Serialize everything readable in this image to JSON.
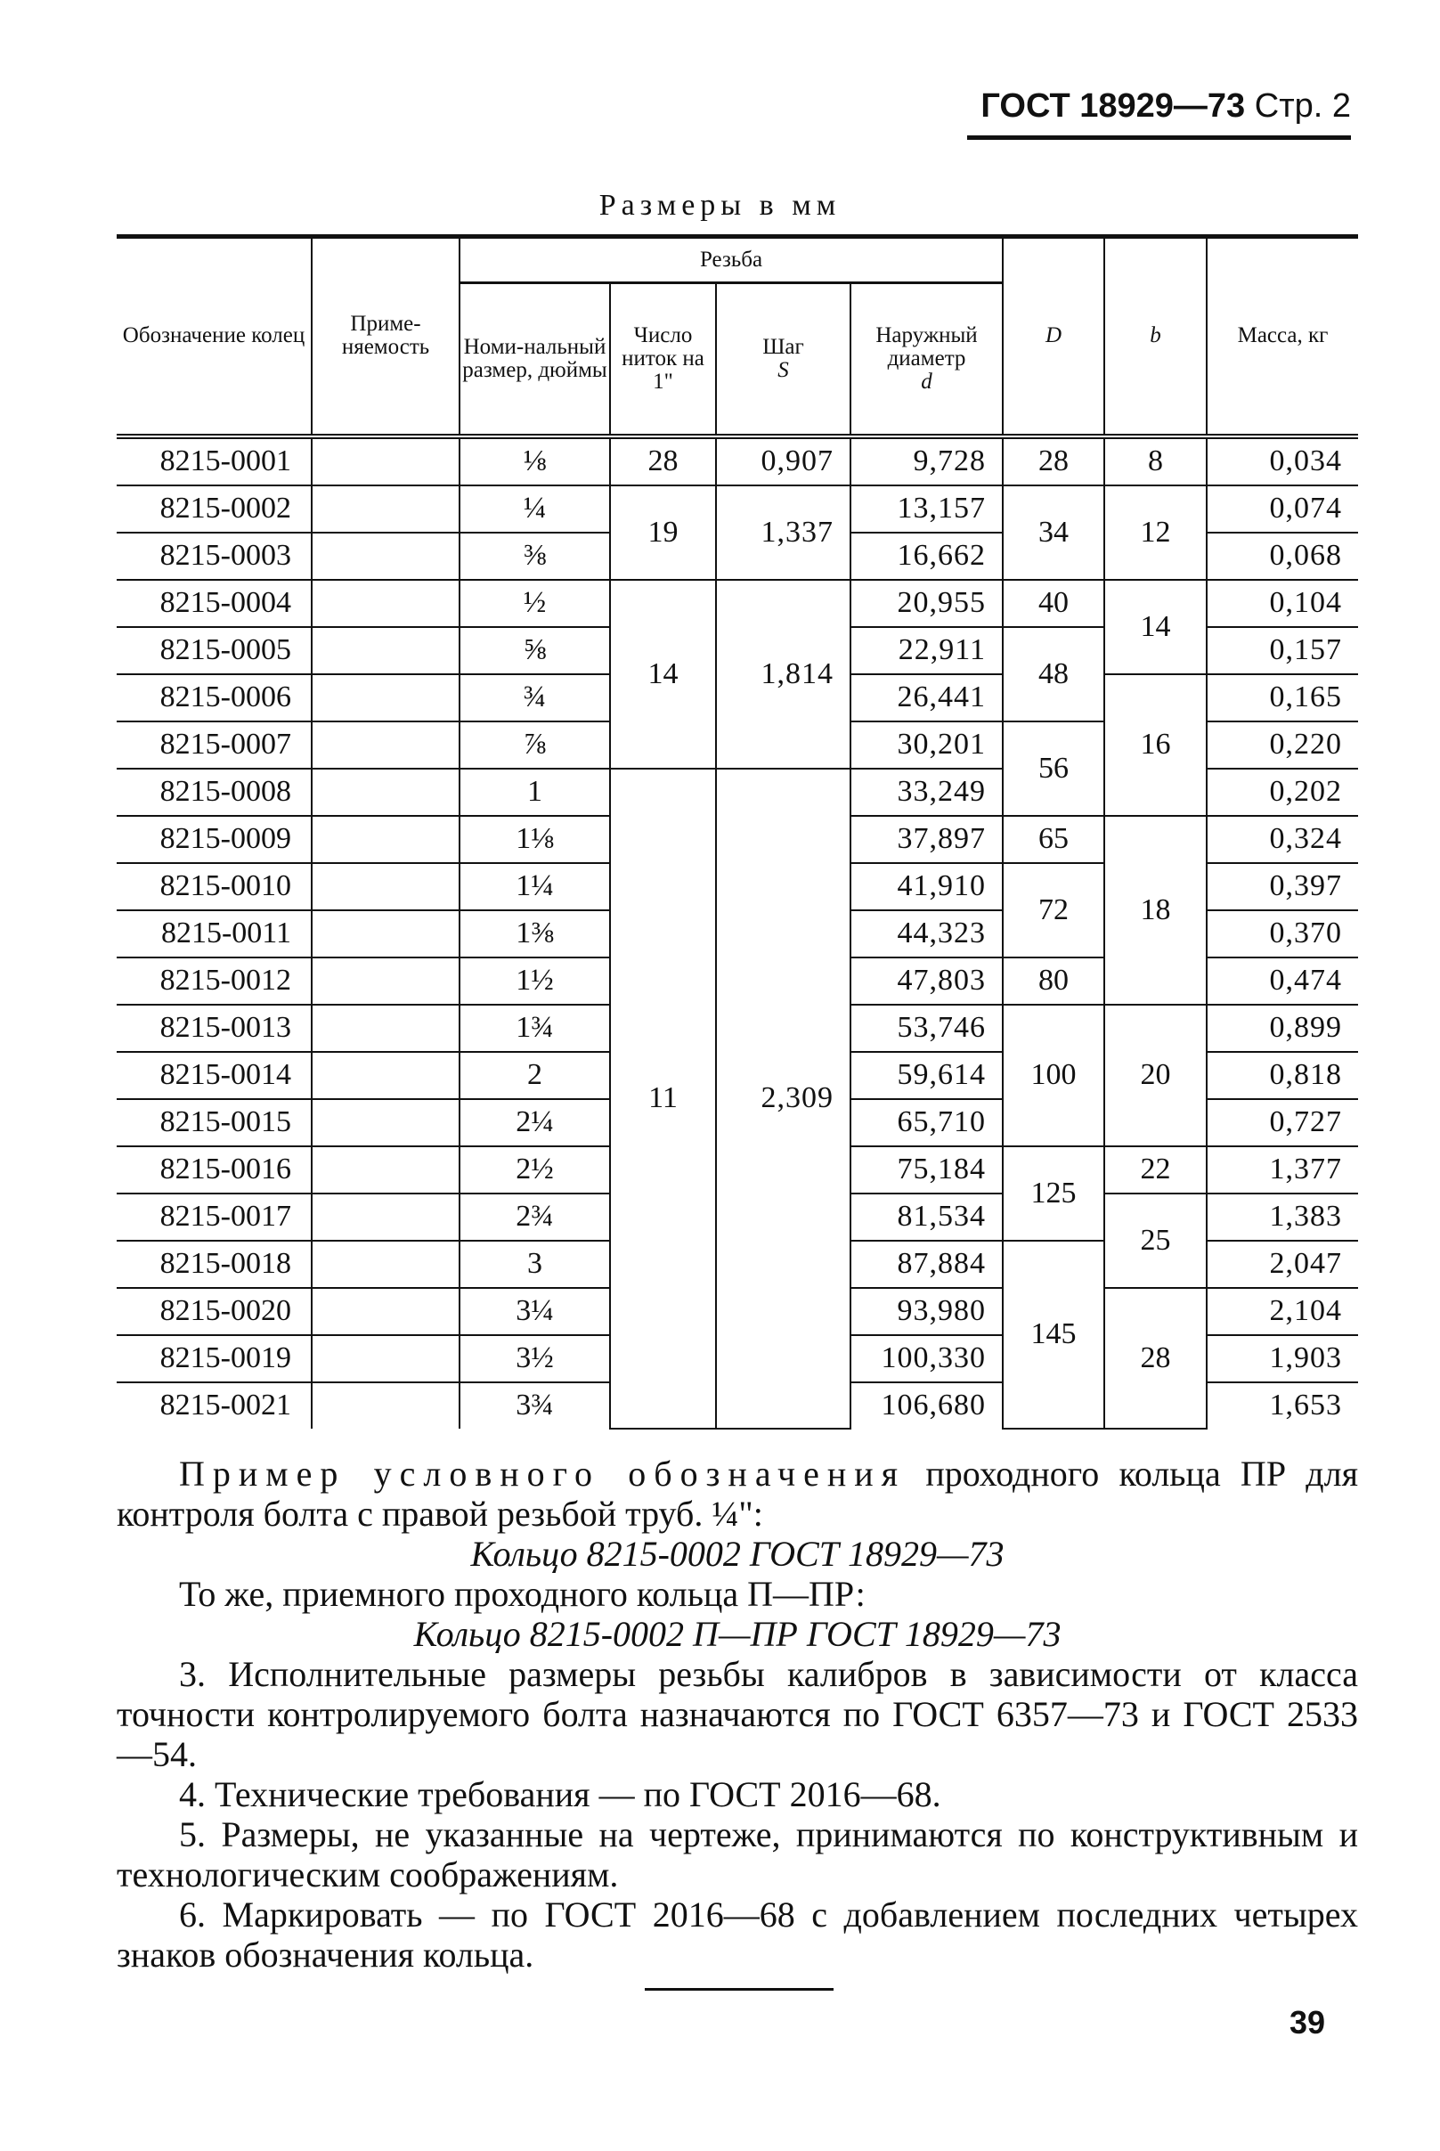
{
  "header": {
    "standard": "ГОСТ 18929—73",
    "page": "Стр. 2"
  },
  "units_caption": "Размеры в мм",
  "table": {
    "headers": {
      "designation": "Обозначение колец",
      "applicability": "Приме-няемость",
      "thread_group": "Резьба",
      "nominal": "Номи-нальный размер, дюймы",
      "threads_per_inch": "Число ниток на 1\"",
      "step": "Шаг",
      "step_sym": "S",
      "outer_diameter": "Наружный диаметр",
      "outer_sym": "d",
      "D": "D",
      "b": "b",
      "mass": "Масса, кг"
    },
    "rows": [
      {
        "designation": "8215-0001",
        "nominal": "⅛",
        "d": "9,728",
        "mass": "0,034"
      },
      {
        "designation": "8215-0002",
        "nominal": "¼",
        "d": "13,157",
        "mass": "0,074"
      },
      {
        "designation": "8215-0003",
        "nominal": "⅜",
        "d": "16,662",
        "mass": "0,068"
      },
      {
        "designation": "8215-0004",
        "nominal": "½",
        "d": "20,955",
        "mass": "0,104"
      },
      {
        "designation": "8215-0005",
        "nominal": "⅝",
        "d": "22,911",
        "mass": "0,157"
      },
      {
        "designation": "8215-0006",
        "nominal": "¾",
        "d": "26,441",
        "mass": "0,165"
      },
      {
        "designation": "8215-0007",
        "nominal": "⅞",
        "d": "30,201",
        "mass": "0,220"
      },
      {
        "designation": "8215-0008",
        "nominal": "1",
        "d": "33,249",
        "mass": "0,202"
      },
      {
        "designation": "8215-0009",
        "nominal": "1⅛",
        "d": "37,897",
        "mass": "0,324"
      },
      {
        "designation": "8215-0010",
        "nominal": "1¼",
        "d": "41,910",
        "mass": "0,397"
      },
      {
        "designation": "8215-0011",
        "nominal": "1⅜",
        "d": "44,323",
        "mass": "0,370"
      },
      {
        "designation": "8215-0012",
        "nominal": "1½",
        "d": "47,803",
        "mass": "0,474"
      },
      {
        "designation": "8215-0013",
        "nominal": "1¾",
        "d": "53,746",
        "mass": "0,899"
      },
      {
        "designation": "8215-0014",
        "nominal": "2",
        "d": "59,614",
        "mass": "0,818"
      },
      {
        "designation": "8215-0015",
        "nominal": "2¼",
        "d": "65,710",
        "mass": "0,727"
      },
      {
        "designation": "8215-0016",
        "nominal": "2½",
        "d": "75,184",
        "mass": "1,377"
      },
      {
        "designation": "8215-0017",
        "nominal": "2¾",
        "d": "81,534",
        "mass": "1,383"
      },
      {
        "designation": "8215-0018",
        "nominal": "3",
        "d": "87,884",
        "mass": "2,047"
      },
      {
        "designation": "8215-0020",
        "nominal": "3¼",
        "d": "93,980",
        "mass": "2,104"
      },
      {
        "designation": "8215-0019",
        "nominal": "3½",
        "d": "100,330",
        "mass": "1,903"
      },
      {
        "designation": "8215-0021",
        "nominal": "3¾",
        "d": "106,680",
        "mass": "1,653"
      }
    ],
    "threads_per_inch_groups": [
      {
        "value": "28",
        "rows": 1
      },
      {
        "value": "19",
        "rows": 2
      },
      {
        "value": "14",
        "rows": 4
      },
      {
        "value": "11",
        "rows": 14
      }
    ],
    "step_groups": [
      {
        "value": "0,907",
        "rows": 1
      },
      {
        "value": "1,337",
        "rows": 2
      },
      {
        "value": "1,814",
        "rows": 4
      },
      {
        "value": "2,309",
        "rows": 14
      }
    ],
    "D_groups": [
      {
        "value": "28",
        "rows": 1
      },
      {
        "value": "34",
        "rows": 2
      },
      {
        "value": "40",
        "rows": 1
      },
      {
        "value": "48",
        "rows": 2
      },
      {
        "value": "56",
        "rows": 2
      },
      {
        "value": "65",
        "rows": 1
      },
      {
        "value": "72",
        "rows": 2
      },
      {
        "value": "80",
        "rows": 1
      },
      {
        "value": "100",
        "rows": 3
      },
      {
        "value": "125",
        "rows": 2
      },
      {
        "value": "145",
        "rows": 4
      }
    ],
    "b_groups": [
      {
        "value": "8",
        "rows": 1
      },
      {
        "value": "12",
        "rows": 2
      },
      {
        "value": "14",
        "rows": 2
      },
      {
        "value": "16",
        "rows": 3
      },
      {
        "value": "18",
        "rows": 4
      },
      {
        "value": "20",
        "rows": 3
      },
      {
        "value": "22",
        "rows": 1
      },
      {
        "value": "25",
        "rows": 2
      },
      {
        "value": "28",
        "rows": 3
      }
    ]
  },
  "text": {
    "example_lead": "Пример условного обозначения",
    "example_rest": "проходного кольца ПР для контроля болта с правой резьбой труб. ¼\":",
    "example1": "Кольцо 8215-0002 ГОСТ 18929—73",
    "same_for": "То же, приемного проходного кольца П—ПР:",
    "example2": "Кольцо 8215-0002 П—ПР ГОСТ 18929—73",
    "item3": "3. Исполнительные размеры резьбы калибров в зависимости от класса точности контролируемого болта назначаются по ГОСТ 6357—73 и ГОСТ 2533—54.",
    "item4": "4. Технические требования — по ГОСТ 2016—68.",
    "item5": "5. Размеры, не указанные на чертеже, принимаются по конструктивным и технологическим соображениям.",
    "item6": "6. Маркировать — по ГОСТ 2016—68 с добавлением последних четырех знаков обозначения кольца."
  },
  "page_number": "39"
}
